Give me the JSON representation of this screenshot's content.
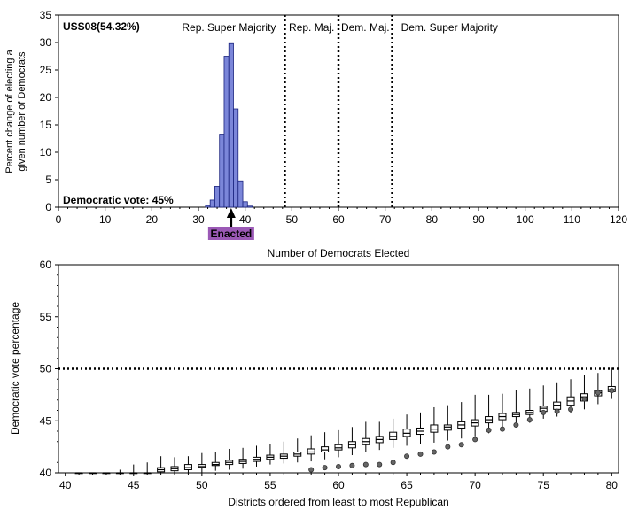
{
  "chart_data": [
    {
      "type": "bar",
      "title": "USS08(54.32%)",
      "xlabel": "Number of Democrats Elected",
      "ylabel": [
        "Percent change of electing a",
        "given number of Democrats"
      ],
      "xlim": [
        0,
        120
      ],
      "ylim": [
        0,
        35
      ],
      "x_ticks": [
        0,
        10,
        20,
        30,
        40,
        50,
        60,
        70,
        80,
        90,
        100,
        110,
        120
      ],
      "y_ticks": [
        0,
        5,
        10,
        15,
        20,
        25,
        30,
        35
      ],
      "bar_color": "#7b86d9",
      "bars": [
        {
          "x": 32,
          "y": 0.3
        },
        {
          "x": 33,
          "y": 1.3
        },
        {
          "x": 34,
          "y": 3.8
        },
        {
          "x": 35,
          "y": 13.3
        },
        {
          "x": 36,
          "y": 27.5
        },
        {
          "x": 37,
          "y": 29.8
        },
        {
          "x": 38,
          "y": 17.9
        },
        {
          "x": 39,
          "y": 4.8
        },
        {
          "x": 40,
          "y": 1.0
        },
        {
          "x": 41,
          "y": 0.2
        }
      ],
      "vlines": [
        48.5,
        60,
        71.5
      ],
      "region_labels": [
        {
          "text": "Rep. Super Majority",
          "x_start": 0,
          "x_end": 48.5
        },
        {
          "text": "Rep. Maj.",
          "x_start": 48.5,
          "x_end": 60
        },
        {
          "text": "Dem. Maj.",
          "x_start": 60,
          "x_end": 71.5
        },
        {
          "text": "Dem. Super Majority",
          "x_start": 71.5,
          "x_end": 120
        }
      ],
      "vote_annotation": "Democratic vote: 45%",
      "enacted": {
        "label": "Enacted",
        "x": 37,
        "color": "#9b59b6"
      }
    },
    {
      "type": "box",
      "xlabel": "Districts ordered from least to most Republican",
      "ylabel": "Democratic vote percentage",
      "xlim": [
        39.5,
        80.5
      ],
      "ylim": [
        40,
        60
      ],
      "x_ticks": [
        40,
        45,
        50,
        55,
        60,
        65,
        70,
        75,
        80
      ],
      "y_ticks": [
        40,
        45,
        50,
        55,
        60
      ],
      "hline": 50,
      "x": [
        41,
        42,
        43,
        44,
        45,
        46,
        47,
        48,
        49,
        50,
        51,
        52,
        53,
        54,
        55,
        56,
        57,
        58,
        59,
        60,
        61,
        62,
        63,
        64,
        65,
        66,
        67,
        68,
        69,
        70,
        71,
        72,
        73,
        74,
        75,
        76,
        77,
        78,
        79,
        80
      ],
      "median": [
        40,
        40,
        40,
        40,
        40,
        40,
        40.3,
        40.4,
        40.5,
        40.6,
        40.8,
        41.0,
        41.1,
        41.3,
        41.5,
        41.6,
        41.8,
        42.0,
        42.2,
        42.4,
        42.7,
        43.0,
        43.2,
        43.5,
        43.8,
        44.0,
        44.2,
        44.4,
        44.6,
        44.8,
        45.1,
        45.4,
        45.6,
        45.8,
        46.2,
        46.5,
        46.9,
        47.3,
        47.7,
        48.0
      ],
      "q1": [
        40,
        40,
        40,
        40,
        40,
        40,
        40.1,
        40.2,
        40.3,
        40.5,
        40.7,
        40.8,
        40.9,
        41.1,
        41.3,
        41.4,
        41.6,
        41.8,
        42.0,
        42.2,
        42.4,
        42.7,
        42.9,
        43.2,
        43.5,
        43.7,
        43.9,
        44.1,
        44.3,
        44.5,
        44.8,
        45.1,
        45.4,
        45.6,
        45.9,
        46.1,
        46.5,
        46.9,
        47.4,
        47.8
      ],
      "q3": [
        40,
        40,
        40,
        40,
        40,
        40,
        40.5,
        40.6,
        40.8,
        40.8,
        41.0,
        41.2,
        41.3,
        41.5,
        41.7,
        41.8,
        42.0,
        42.3,
        42.5,
        42.7,
        43.0,
        43.3,
        43.5,
        43.9,
        44.2,
        44.3,
        44.6,
        44.6,
        44.9,
        45.1,
        45.4,
        45.7,
        45.8,
        46.0,
        46.4,
        46.8,
        47.3,
        47.6,
        47.9,
        48.3
      ],
      "whisker_low": [
        40,
        40,
        40,
        40,
        40,
        40,
        40,
        40,
        40,
        40,
        40.2,
        40.3,
        40.4,
        40.6,
        40.8,
        40.9,
        41.0,
        41.1,
        41.3,
        41.5,
        41.7,
        42.0,
        42.2,
        42.4,
        42.6,
        42.8,
        42.9,
        43.1,
        43.3,
        43.5,
        43.8,
        44.2,
        44.5,
        44.8,
        45.2,
        45.4,
        45.7,
        46.1,
        46.6,
        47.1
      ],
      "whisker_high": [
        40,
        40,
        40,
        40.3,
        40.8,
        41.0,
        41.6,
        41.5,
        41.6,
        41.9,
        42.0,
        42.3,
        42.4,
        42.6,
        42.8,
        43.0,
        43.3,
        43.6,
        43.9,
        44.1,
        44.4,
        44.9,
        44.9,
        45.2,
        45.6,
        45.8,
        46.3,
        46.5,
        46.8,
        47.5,
        47.5,
        47.6,
        48.0,
        48.1,
        48.4,
        48.7,
        49.0,
        49.4,
        49.6,
        50.1
      ],
      "enacted_points": [
        {
          "x": 58,
          "y": 40.3
        },
        {
          "x": 59,
          "y": 40.5
        },
        {
          "x": 60,
          "y": 40.6
        },
        {
          "x": 61,
          "y": 40.7
        },
        {
          "x": 62,
          "y": 40.8
        },
        {
          "x": 63,
          "y": 40.8
        },
        {
          "x": 64,
          "y": 41.0
        },
        {
          "x": 65,
          "y": 41.6
        },
        {
          "x": 66,
          "y": 41.8
        },
        {
          "x": 67,
          "y": 42.0
        },
        {
          "x": 68,
          "y": 42.5
        },
        {
          "x": 69,
          "y": 42.7
        },
        {
          "x": 70,
          "y": 43.2
        },
        {
          "x": 71,
          "y": 44.1
        },
        {
          "x": 72,
          "y": 44.2
        },
        {
          "x": 73,
          "y": 44.6
        },
        {
          "x": 74,
          "y": 45.1
        },
        {
          "x": 75,
          "y": 45.8
        },
        {
          "x": 76,
          "y": 45.9
        },
        {
          "x": 77,
          "y": 46.1
        },
        {
          "x": 78,
          "y": 47.1
        },
        {
          "x": 79,
          "y": 47.7
        },
        {
          "x": 80,
          "y": 47.9
        }
      ]
    }
  ]
}
